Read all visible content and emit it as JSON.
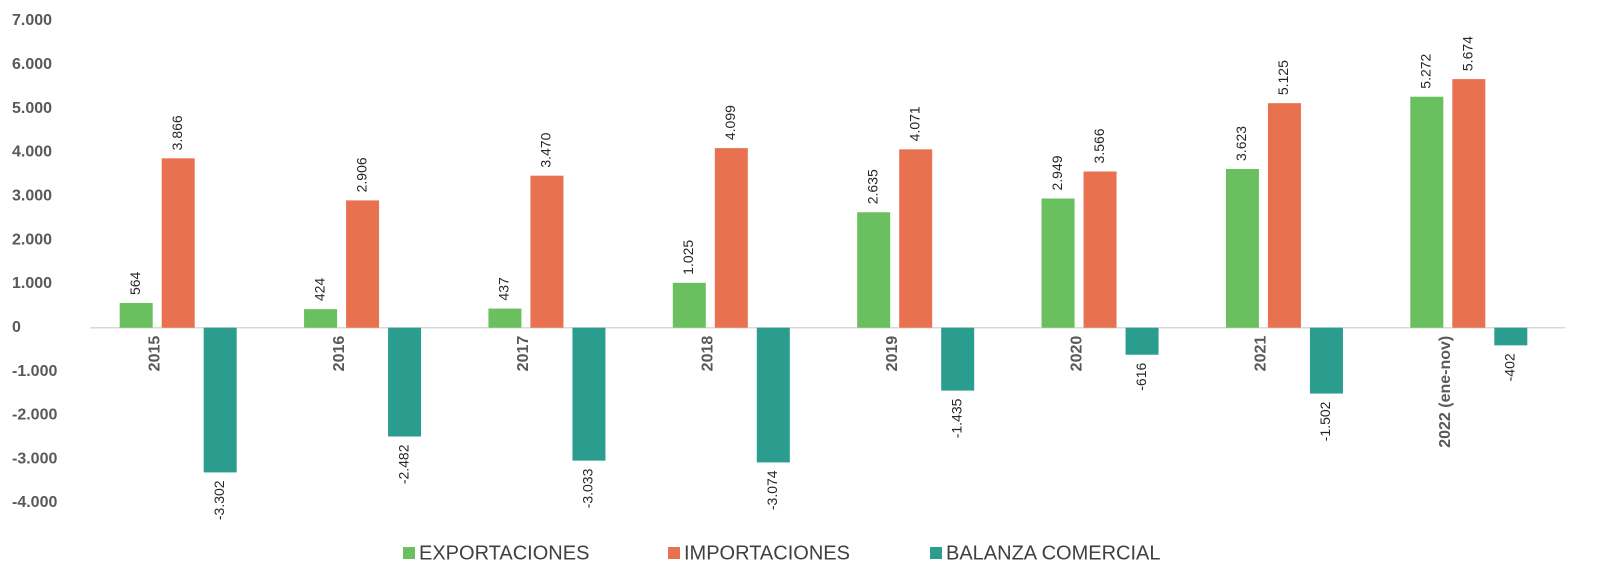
{
  "chart_data": {
    "type": "bar",
    "categories": [
      "2015",
      "2016",
      "2017",
      "2018",
      "2019",
      "2020",
      "2021",
      "2022 (ene-nov)"
    ],
    "series": [
      {
        "name": "EXPORTACIONES",
        "color": "#6abf5e",
        "values": [
          564,
          424,
          437,
          1025,
          2635,
          2949,
          3623,
          5272
        ],
        "value_labels": [
          "564",
          "424",
          "437",
          "1.025",
          "2.635",
          "2.949",
          "3.623",
          "5.272"
        ]
      },
      {
        "name": "IMPORTACIONES",
        "color": "#e8714f",
        "values": [
          3866,
          2906,
          3470,
          4099,
          4071,
          3566,
          5125,
          5674
        ],
        "value_labels": [
          "3.866",
          "2.906",
          "3.470",
          "4.099",
          "4.071",
          "3.566",
          "5.125",
          "5.674"
        ]
      },
      {
        "name": "BALANZA COMERCIAL",
        "color": "#2a9d8f",
        "values": [
          -3302,
          -2482,
          -3033,
          -3074,
          -1435,
          -616,
          -1502,
          -402
        ],
        "value_labels": [
          "-3.302",
          "-2.482",
          "-3.033",
          "-3.074",
          "-1.435",
          "-616",
          "-1.502",
          "-402"
        ]
      }
    ],
    "ylim": [
      -4000,
      7000
    ],
    "yticks": [
      {
        "value": -4000,
        "label": "-4.000"
      },
      {
        "value": -3000,
        "label": "-3.000"
      },
      {
        "value": -2000,
        "label": "-2.000"
      },
      {
        "value": -1000,
        "label": "-1.000"
      },
      0,
      {
        "value": 1000,
        "label": "1.000"
      },
      {
        "value": 2000,
        "label": "2.000"
      },
      {
        "value": 3000,
        "label": "3.000"
      },
      {
        "value": 4000,
        "label": "4.000"
      },
      {
        "value": 5000,
        "label": "5.000"
      },
      {
        "value": 6000,
        "label": "6.000"
      },
      {
        "value": 7000,
        "label": "7.000"
      }
    ],
    "legend": "bottom"
  }
}
